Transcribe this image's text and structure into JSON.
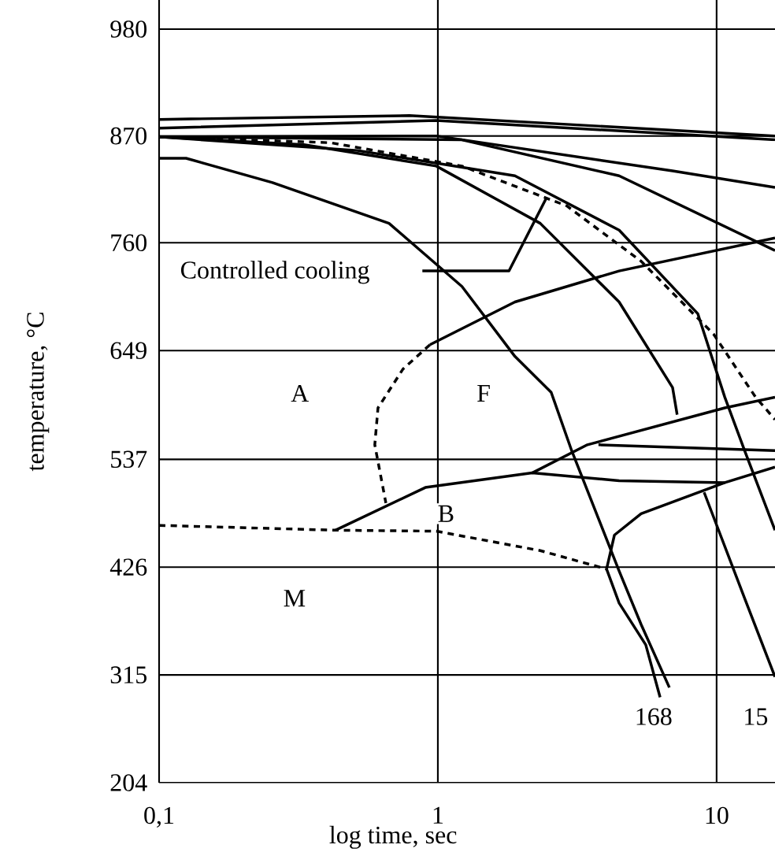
{
  "chart_data": {
    "type": "line",
    "xlabel": "log time, sec",
    "ylabel": "temperature, °C",
    "log": "x",
    "grid": true,
    "marker": "none",
    "xlim": [
      0.1,
      16.2
    ],
    "ylim": [
      204,
      1010
    ],
    "xticks": [
      {
        "value": 0.1,
        "label": "0,1"
      },
      1,
      10
    ],
    "yticks": [
      204,
      315,
      426,
      537,
      649,
      760,
      870,
      980
    ],
    "series": [
      {
        "color": "#000000",
        "line_style": "solid",
        "x": [
          0.1,
          0.125,
          0.255,
          0.668,
          1.22,
          1.89,
          2.55,
          3.02,
          3.77,
          4.47,
          5.36,
          6.77
        ],
        "values": [
          847,
          847,
          822,
          780,
          715,
          643,
          606,
          546,
          476,
          422,
          367,
          302
        ]
      },
      {
        "color": "#000000",
        "line_style": "solid",
        "x": [
          4.03,
          4.47,
          5.57,
          6.27
        ],
        "values": [
          424,
          389,
          346,
          292
        ]
      },
      {
        "color": "#000000",
        "line_style": "solid",
        "x": [
          0.1,
          0.331,
          0.987,
          2.33,
          4.47,
          6.95,
          7.22
        ],
        "values": [
          869,
          861,
          839,
          780,
          699,
          611,
          583
        ]
      },
      {
        "color": "#000000",
        "line_style": "solid",
        "x": [
          0.1,
          0.515,
          1.89,
          4.47,
          8.56,
          10.7,
          12.6,
          16.2
        ],
        "values": [
          869,
          855,
          829,
          773,
          687,
          601,
          546,
          464
        ]
      },
      {
        "color": "#000000",
        "line_style": "dashed",
        "x": [
          0.1,
          0.413,
          1.22,
          2.9,
          5.36,
          9.75,
          13.8,
          16.2
        ],
        "values": [
          869,
          863,
          839,
          798,
          741,
          666,
          601,
          578
        ]
      },
      {
        "color": "#000000",
        "line_style": "solid",
        "x": [
          0.1,
          1.22,
          4.47,
          16.2
        ],
        "values": [
          869,
          866,
          829,
          752
        ]
      },
      {
        "color": "#000000",
        "line_style": "solid",
        "x": [
          0.1,
          0.987,
          6.95,
          16.2
        ],
        "values": [
          869,
          870,
          834,
          817
        ]
      },
      {
        "color": "#000000",
        "line_style": "solid",
        "x": [
          0.1,
          0.791,
          16.2
        ],
        "values": [
          887,
          891,
          870
        ]
      },
      {
        "color": "#000000",
        "line_style": "solid",
        "x": [
          0.1,
          0.987,
          16.2
        ],
        "values": [
          878,
          886,
          866
        ]
      },
      {
        "color": "#000000",
        "line_style": "solid",
        "x": [
          0.937,
          1.89,
          4.47,
          16.2
        ],
        "values": [
          655,
          699,
          731,
          765
        ]
      },
      {
        "color": "#000000",
        "line_style": "dashed",
        "x": [
          0.937,
          0.75,
          0.61,
          0.594,
          0.651
        ],
        "values": [
          655,
          630,
          590,
          552,
          492
        ]
      },
      {
        "color": "#000000",
        "line_style": "solid",
        "x": [
          2.18,
          3.44,
          10.7,
          16.2
        ],
        "values": [
          523,
          552,
          590,
          601
        ]
      },
      {
        "color": "#000000",
        "line_style": "solid",
        "x": [
          0.429,
          0.902,
          2.18,
          4.47,
          10.7,
          16.2
        ],
        "values": [
          464,
          508,
          523,
          515,
          513,
          529
        ]
      },
      {
        "color": "#000000",
        "line_style": "solid",
        "x": [
          3.77,
          16.2
        ],
        "values": [
          552,
          546
        ]
      },
      {
        "color": "#000000",
        "line_style": "dashed",
        "x": [
          0.1,
          0.429,
          0.987,
          2.33,
          4.03
        ],
        "values": [
          469,
          464,
          463,
          443,
          424
        ]
      },
      {
        "color": "#000000",
        "line_style": "solid",
        "x": [
          4.03,
          4.3,
          5.36,
          10.7
        ],
        "values": [
          424,
          459,
          481,
          513
        ]
      },
      {
        "color": "#000000",
        "line_style": "solid",
        "x": [
          9.02,
          12.6,
          16.2
        ],
        "values": [
          503,
          394,
          313
        ]
      },
      {
        "color": "#000000",
        "line_style": "solid",
        "x": [
          0.88,
          1.8,
          2.45
        ],
        "values": [
          731,
          731,
          806
        ]
      }
    ],
    "annotations": [
      {
        "text": "A",
        "x": 0.32,
        "y": 605
      },
      {
        "text": "F",
        "x": 1.46,
        "y": 605
      },
      {
        "text": "B",
        "x": 1.07,
        "y": 481
      },
      {
        "text": "M",
        "x": 0.306,
        "y": 394
      },
      "Controlled cooling",
      {
        "text": "168",
        "x": 5.94,
        "y": 272
      },
      {
        "text": "15",
        "x": 13.8,
        "y": 272
      }
    ]
  }
}
